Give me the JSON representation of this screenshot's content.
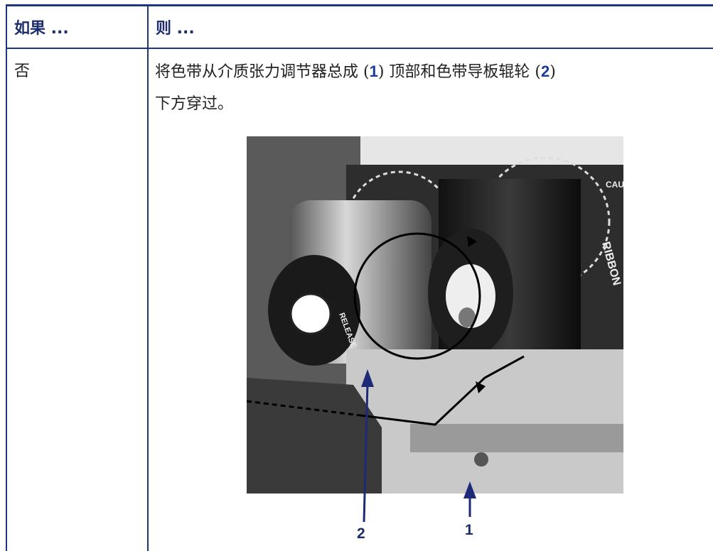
{
  "table": {
    "header": [
      "如果 ...",
      "则 ..."
    ],
    "rows": [
      [
        "否",
        [
          "将色带从介质张力调节器总成 (",
          "1",
          ") 顶部和色带导板辊轮 (",
          "2",
          ") 下方穿过。"
        ]
      ]
    ]
  },
  "figure": {
    "photo_labels": [
      "RIBBON",
      "RELEASE",
      "CAU"
    ],
    "callouts": [
      "2",
      "1"
    ]
  }
}
